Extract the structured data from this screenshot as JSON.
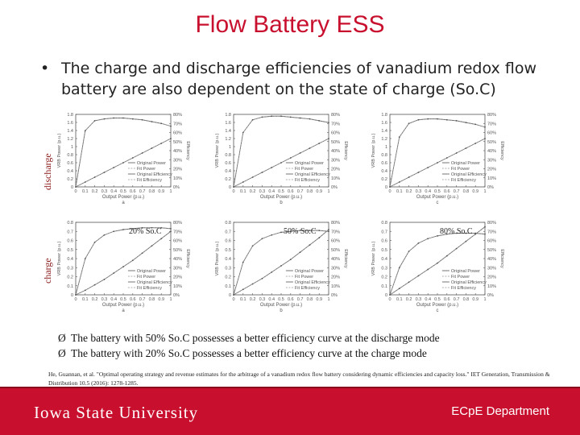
{
  "slide": {
    "title": "Flow Battery ESS",
    "bullet_marker": "•",
    "bullet_text": "The charge and discharge efficiencies of vanadium redox flow battery are also dependent on the state of charge (So.C)",
    "row_labels": {
      "discharge": "discharge",
      "charge": "charge"
    },
    "soc_labels": [
      "20% So.C",
      "50% So.C",
      "80% So.C"
    ],
    "panel_letters": [
      "a",
      "b",
      "c"
    ],
    "conclusions": [
      "The battery with 50% So.C possesses a better efficiency curve at the discharge mode",
      "The battery with 20% So.C possesses a better efficiency curve at the charge mode"
    ],
    "conclusion_marker": "Ø",
    "reference": "He, Guannan, et al. \"Optimal operating strategy and revenue estimates for the arbitrage of a vanadium redox flow battery considering dynamic efficiencies and capacity loss.\" IET Generation, Transmission & Distribution 10.5 (2016): 1278-1285.",
    "footer_left": "Iowa State University",
    "footer_right": "ECpE Department"
  },
  "chart_common": {
    "xlabel": "Output Power (p.u.)",
    "ylabel_left": "VRB Power (p.u.)",
    "ylabel_right": "Efficiency",
    "x_ticks": [
      "0",
      "0.1",
      "0.2",
      "0.3",
      "0.4",
      "0.5",
      "0.6",
      "0.7",
      "0.8",
      "0.9",
      "1"
    ],
    "legend": [
      "Original Power",
      "Fit Power",
      "Original Efficiency",
      "Fit Efficiency"
    ]
  },
  "chart_data": [
    {
      "type": "line",
      "mode": "discharge",
      "panel": "a",
      "y_ticks": [
        "0",
        "0.2",
        "0.4",
        "0.6",
        "0.8",
        "1",
        "1.2",
        "1.4",
        "1.6",
        "1.8"
      ],
      "ylim": [
        0,
        1.8
      ],
      "y2_ticks": [
        "0%",
        "10%",
        "20%",
        "30%",
        "40%",
        "50%",
        "60%",
        "70%",
        "80%"
      ],
      "y2lim": [
        0,
        80
      ],
      "x": [
        0,
        0.1,
        0.2,
        0.3,
        0.4,
        0.5,
        0.6,
        0.7,
        0.8,
        0.9,
        1.0
      ],
      "series": [
        {
          "name": "Original Power",
          "values": [
            0,
            0.12,
            0.24,
            0.36,
            0.48,
            0.6,
            0.72,
            0.84,
            0.96,
            1.08,
            1.2
          ]
        },
        {
          "name": "Original Efficiency",
          "values": [
            0,
            62,
            73,
            75,
            76,
            76,
            75,
            74,
            72,
            70,
            67
          ]
        }
      ]
    },
    {
      "type": "line",
      "mode": "discharge",
      "panel": "b",
      "y_ticks": [
        "0",
        "0.2",
        "0.4",
        "0.6",
        "0.8",
        "1",
        "1.2",
        "1.4",
        "1.6",
        "1.8"
      ],
      "ylim": [
        0,
        1.8
      ],
      "y2_ticks": [
        "0%",
        "10%",
        "20%",
        "30%",
        "40%",
        "50%",
        "60%",
        "70%",
        "80%"
      ],
      "y2lim": [
        0,
        80
      ],
      "x": [
        0,
        0.1,
        0.2,
        0.3,
        0.4,
        0.5,
        0.6,
        0.7,
        0.8,
        0.9,
        1.0
      ],
      "series": [
        {
          "name": "Original Power",
          "values": [
            0,
            0.12,
            0.24,
            0.36,
            0.48,
            0.6,
            0.72,
            0.84,
            0.96,
            1.08,
            1.2
          ]
        },
        {
          "name": "Original Efficiency",
          "values": [
            0,
            60,
            74,
            77,
            78,
            78,
            77,
            76,
            75,
            73,
            71
          ]
        }
      ]
    },
    {
      "type": "line",
      "mode": "discharge",
      "panel": "c",
      "y_ticks": [
        "0",
        "0.2",
        "0.4",
        "0.6",
        "0.8",
        "1",
        "1.2",
        "1.4",
        "1.6",
        "1.8"
      ],
      "ylim": [
        0,
        1.8
      ],
      "y2_ticks": [
        "0%",
        "10%",
        "20%",
        "30%",
        "40%",
        "50%",
        "60%",
        "70%",
        "80%"
      ],
      "y2lim": [
        0,
        80
      ],
      "x": [
        0,
        0.1,
        0.2,
        0.3,
        0.4,
        0.5,
        0.6,
        0.7,
        0.8,
        0.9,
        1.0
      ],
      "series": [
        {
          "name": "Original Power",
          "values": [
            0,
            0.12,
            0.24,
            0.36,
            0.48,
            0.6,
            0.72,
            0.84,
            0.96,
            1.08,
            1.2
          ]
        },
        {
          "name": "Original Efficiency",
          "values": [
            0,
            55,
            70,
            74,
            75,
            75,
            74,
            73,
            71,
            69,
            66
          ]
        }
      ]
    },
    {
      "type": "line",
      "mode": "charge",
      "panel": "a",
      "y_ticks": [
        "0",
        "0.1",
        "0.2",
        "0.3",
        "0.4",
        "0.5",
        "0.6",
        "0.7",
        "0.8"
      ],
      "ylim": [
        0,
        0.8
      ],
      "y2_ticks": [
        "0%",
        "10%",
        "20%",
        "30%",
        "40%",
        "50%",
        "60%",
        "70%",
        "80%"
      ],
      "y2lim": [
        0,
        80
      ],
      "x": [
        0,
        0.1,
        0.2,
        0.3,
        0.4,
        0.5,
        0.6,
        0.7,
        0.8,
        0.9,
        1.0
      ],
      "series": [
        {
          "name": "Original Power",
          "values": [
            0,
            0.05,
            0.11,
            0.17,
            0.24,
            0.31,
            0.38,
            0.46,
            0.54,
            0.62,
            0.7
          ]
        },
        {
          "name": "Original Efficiency",
          "values": [
            0,
            40,
            58,
            66,
            70,
            72,
            73,
            74,
            74,
            74,
            73
          ]
        }
      ]
    },
    {
      "type": "line",
      "mode": "charge",
      "panel": "b",
      "y_ticks": [
        "0",
        "0.1",
        "0.2",
        "0.3",
        "0.4",
        "0.5",
        "0.6",
        "0.7",
        "0.8"
      ],
      "ylim": [
        0,
        0.8
      ],
      "y2_ticks": [
        "0%",
        "10%",
        "20%",
        "30%",
        "40%",
        "50%",
        "60%",
        "70%",
        "80%"
      ],
      "y2lim": [
        0,
        80
      ],
      "x": [
        0,
        0.1,
        0.2,
        0.3,
        0.4,
        0.5,
        0.6,
        0.7,
        0.8,
        0.9,
        1.0
      ],
      "series": [
        {
          "name": "Original Power",
          "values": [
            0,
            0.06,
            0.12,
            0.18,
            0.25,
            0.32,
            0.39,
            0.47,
            0.55,
            0.63,
            0.72
          ]
        },
        {
          "name": "Original Efficiency",
          "values": [
            0,
            36,
            54,
            62,
            66,
            69,
            70,
            71,
            71,
            71,
            70
          ]
        }
      ]
    },
    {
      "type": "line",
      "mode": "charge",
      "panel": "c",
      "y_ticks": [
        "0",
        "0.1",
        "0.2",
        "0.3",
        "0.4",
        "0.5",
        "0.6",
        "0.7",
        "0.8"
      ],
      "ylim": [
        0,
        0.8
      ],
      "y2_ticks": [
        "0%",
        "10%",
        "20%",
        "30%",
        "40%",
        "50%",
        "60%",
        "70%",
        "80%"
      ],
      "y2lim": [
        0,
        80
      ],
      "x": [
        0,
        0.1,
        0.2,
        0.3,
        0.4,
        0.5,
        0.6,
        0.7,
        0.8,
        0.9,
        1.0
      ],
      "series": [
        {
          "name": "Original Power",
          "values": [
            0,
            0.07,
            0.14,
            0.21,
            0.28,
            0.35,
            0.43,
            0.51,
            0.59,
            0.67,
            0.75
          ]
        },
        {
          "name": "Original Efficiency",
          "values": [
            0,
            30,
            48,
            57,
            62,
            65,
            67,
            68,
            68,
            68,
            67
          ]
        }
      ]
    }
  ]
}
